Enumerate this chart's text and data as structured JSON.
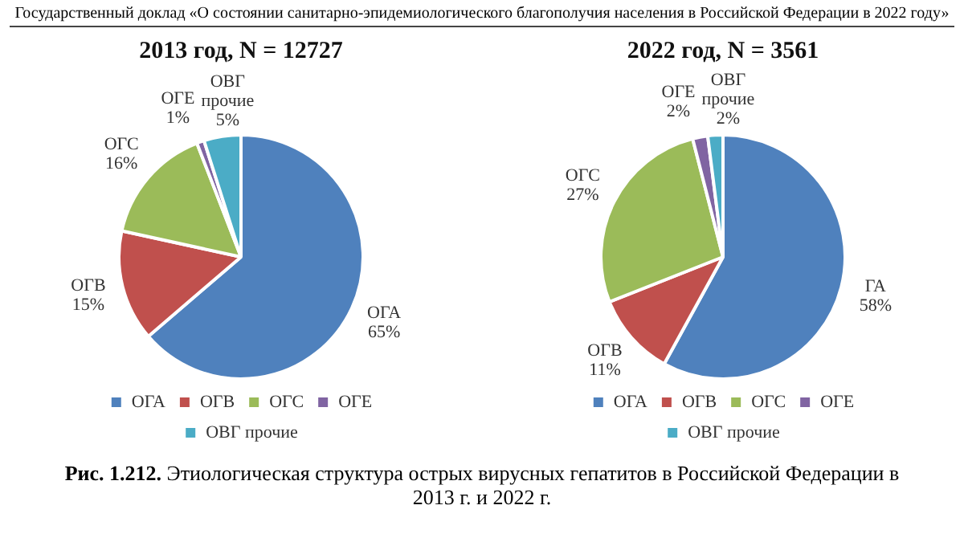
{
  "chart_data": [
    {
      "type": "pie",
      "title": "2013 год, N = 12727",
      "categories": [
        "ОГА",
        "ОГВ",
        "ОГС",
        "ОГЕ",
        "ОВГ прочие"
      ],
      "values": [
        65,
        15,
        16,
        1,
        5
      ],
      "colors": [
        "#4f81bd",
        "#c0504d",
        "#9bbb59",
        "#8064a2",
        "#4bacc6"
      ],
      "value_labels": [
        "ОГА\n65%",
        "ОГВ\n15%",
        "ОГС\n16%",
        "ОГЕ\n1%",
        "ОВГ\nпрочие\n5%"
      ],
      "legend": "bottom",
      "annotations": [
        "Государственный доклад «О состоянии санитарно-эпидемиологического благополучия населения в Российской Федерации в 2022 году»",
        "Рис. 1.212.",
        "Этиологическая структура острых вирусных гепатитов в Российской Федерации в 2013 г. и 2022 г."
      ]
    },
    {
      "type": "pie",
      "title": "2022 год, N = 3561",
      "categories": [
        "ОГА",
        "ОГВ",
        "ОГС",
        "ОГЕ",
        "ОВГ прочие"
      ],
      "values": [
        58,
        11,
        27,
        2,
        2
      ],
      "colors": [
        "#4f81bd",
        "#c0504d",
        "#9bbb59",
        "#8064a2",
        "#4bacc6"
      ],
      "value_labels": [
        "ГА\n58%",
        "ОГВ\n11%",
        "ОГС\n27%",
        "ОГЕ\n2%",
        "ОВГ\nпрочие\n2%"
      ],
      "legend": "bottom"
    }
  ]
}
